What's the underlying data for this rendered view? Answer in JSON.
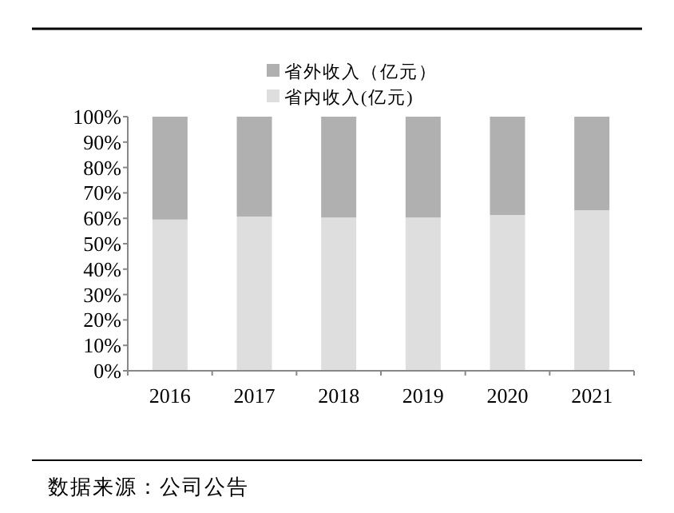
{
  "chart_data": {
    "type": "bar",
    "stacked": true,
    "categories": [
      "2016",
      "2017",
      "2018",
      "2019",
      "2020",
      "2021"
    ],
    "series": [
      {
        "name": "省内收入(亿元)",
        "color": "#dedede",
        "values": [
          59.5,
          60.7,
          60.3,
          60.3,
          61.3,
          63.2
        ]
      },
      {
        "name": "省外收入（亿元）",
        "color": "#b0b0b0",
        "values": [
          40.5,
          39.3,
          39.7,
          39.7,
          38.7,
          36.8
        ]
      }
    ],
    "ylim": [
      0,
      100
    ],
    "yticks": [
      {
        "value": 0,
        "label": "0%"
      },
      {
        "value": 10,
        "label": "10%"
      },
      {
        "value": 20,
        "label": "20%"
      },
      {
        "value": 30,
        "label": "30%"
      },
      {
        "value": 40,
        "label": "40%"
      },
      {
        "value": 50,
        "label": "50%"
      },
      {
        "value": 60,
        "label": "60%"
      },
      {
        "value": 70,
        "label": "70%"
      },
      {
        "value": 80,
        "label": "80%"
      },
      {
        "value": 90,
        "label": "90%"
      },
      {
        "value": 100,
        "label": "100%"
      }
    ],
    "legend": "top",
    "annotations": [
      "数据来源：公司公告"
    ]
  }
}
